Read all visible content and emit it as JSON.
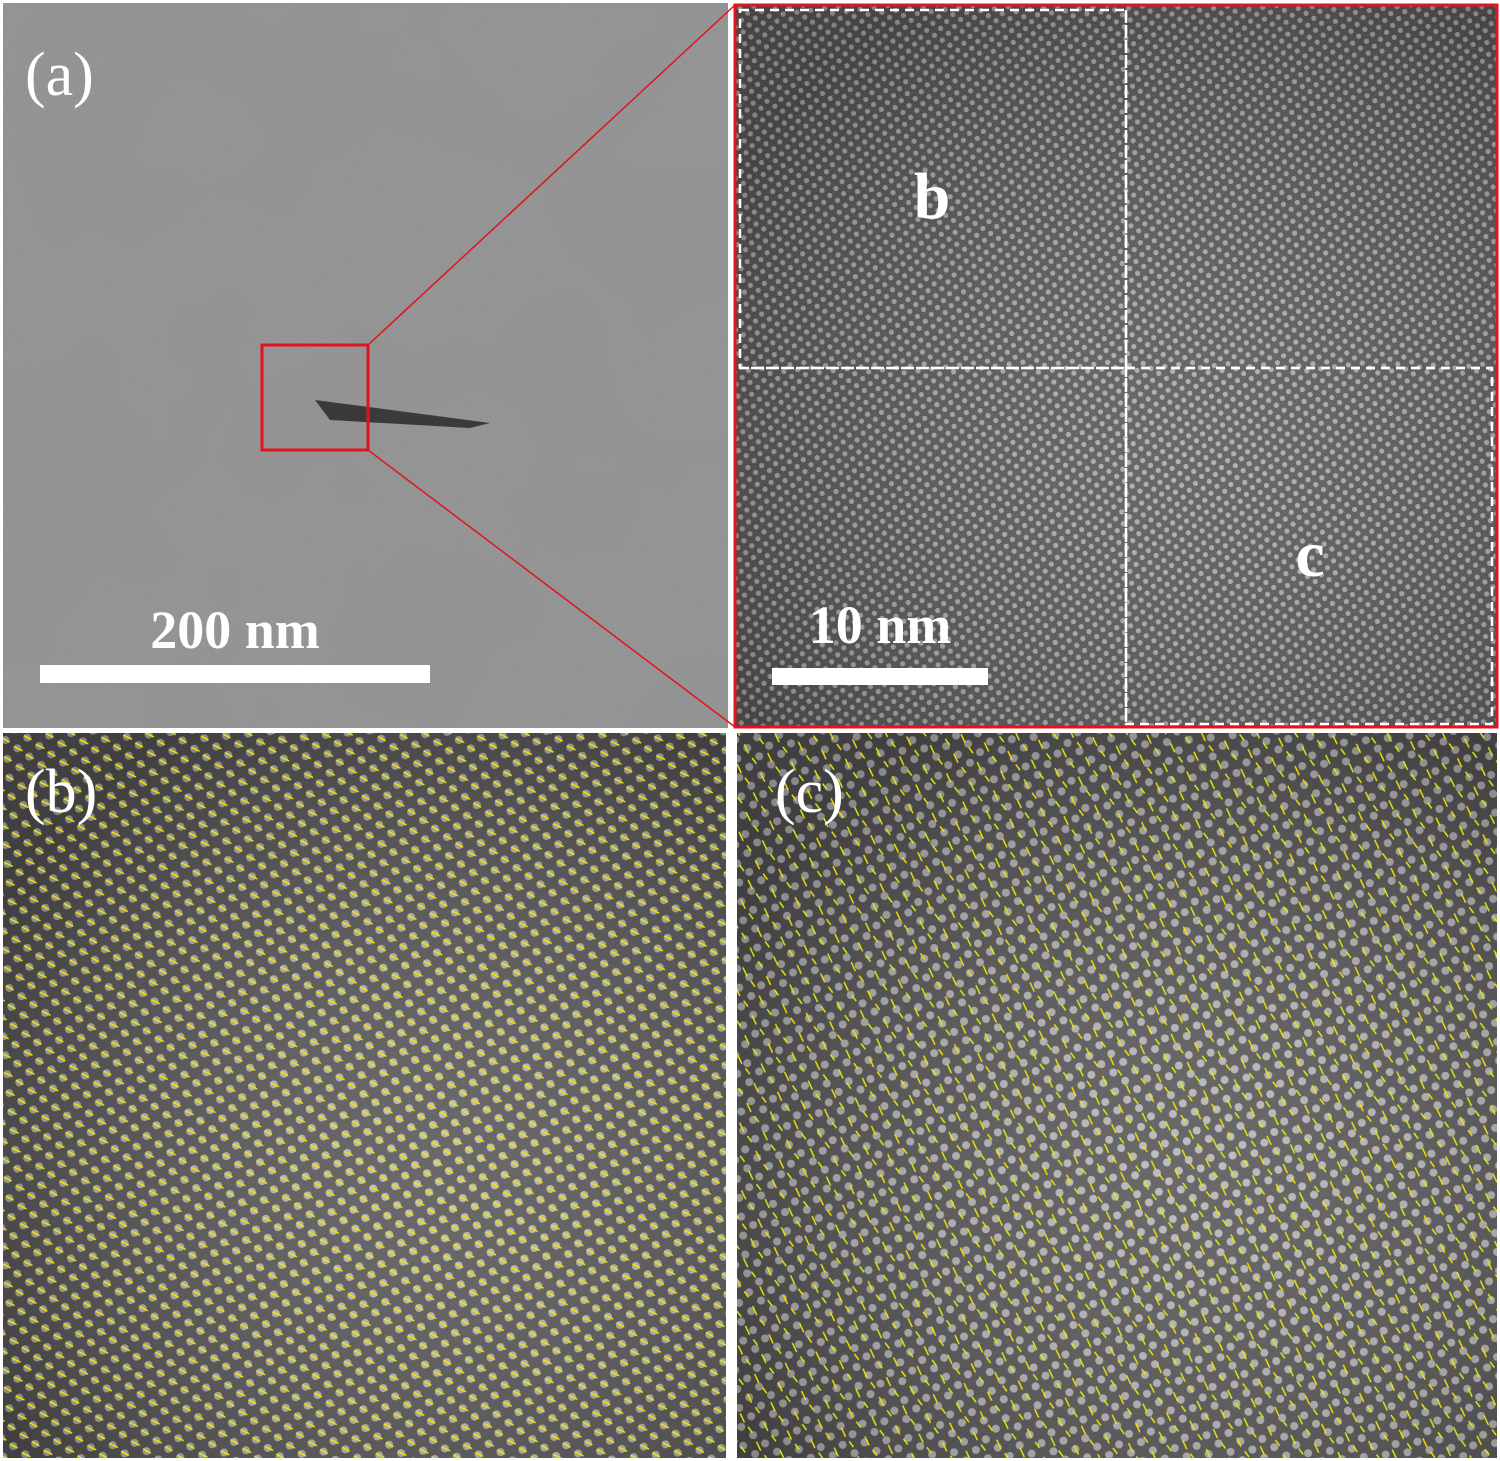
{
  "panels": [
    {
      "label": "(a)",
      "scale_bar": "200 nm"
    },
    {
      "scale_bar": "10 nm",
      "regions": [
        "b",
        "c"
      ]
    },
    {
      "label": "(b)"
    },
    {
      "label": "(c)"
    }
  ]
}
